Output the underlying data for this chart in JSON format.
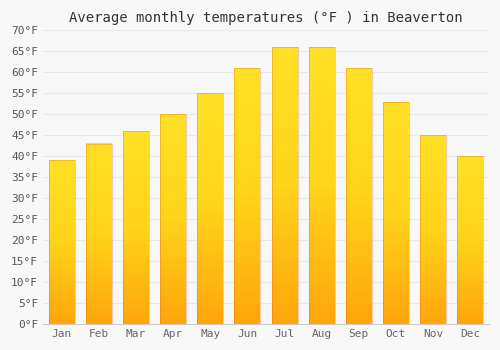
{
  "title": "Average monthly temperatures (°F ) in Beaverton",
  "months": [
    "Jan",
    "Feb",
    "Mar",
    "Apr",
    "May",
    "Jun",
    "Jul",
    "Aug",
    "Sep",
    "Oct",
    "Nov",
    "Dec"
  ],
  "values": [
    39,
    43,
    46,
    50,
    55,
    61,
    66,
    66,
    61,
    53,
    45,
    40
  ],
  "bar_color_center": "#FFCA28",
  "bar_color_edge": "#FFA000",
  "bar_color_bottom": "#FF8F00",
  "ylim": [
    0,
    70
  ],
  "yticks": [
    0,
    5,
    10,
    15,
    20,
    25,
    30,
    35,
    40,
    45,
    50,
    55,
    60,
    65,
    70
  ],
  "ytick_labels": [
    "0°F",
    "5°F",
    "10°F",
    "15°F",
    "20°F",
    "25°F",
    "30°F",
    "35°F",
    "40°F",
    "45°F",
    "50°F",
    "55°F",
    "60°F",
    "65°F",
    "70°F"
  ],
  "background_color": "#f8f8f8",
  "grid_color": "#e8e8e8",
  "title_fontsize": 10,
  "tick_fontsize": 8,
  "bar_width": 0.7
}
